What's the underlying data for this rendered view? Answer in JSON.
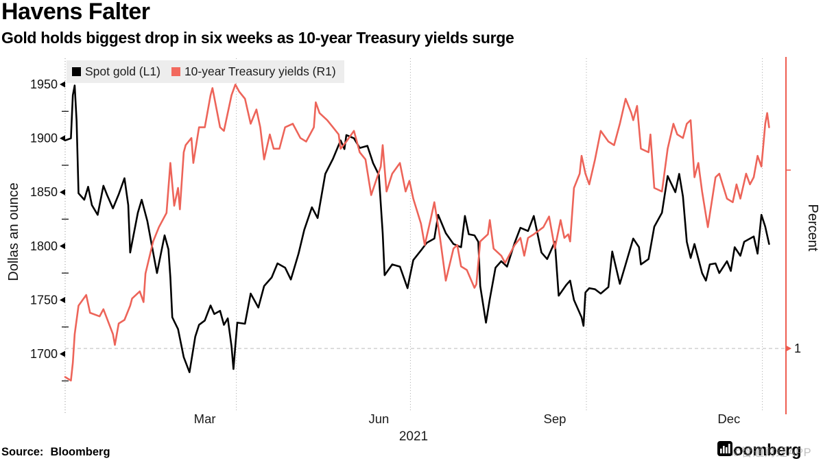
{
  "header": {
    "title": "Havens Falter",
    "subtitle": "Gold holds biggest drop in six weeks as 10-year Treasury yields surge"
  },
  "legend": [
    {
      "label": "Spot gold (L1)",
      "color": "#000000"
    },
    {
      "label": "10-year Treasury yields (R1)",
      "color": "#f2695e"
    }
  ],
  "footer": {
    "source_label": "Source:",
    "source_value": "Bloomberg",
    "brand": "Bloomberg",
    "watermark": "©智通财经APP"
  },
  "colors": {
    "gold_line": "#000000",
    "yield_line": "#ed6459",
    "right_axis": "#ee5d50",
    "gridline": "#a8a8a8",
    "legend_bg": "#ededed"
  },
  "chart_data": {
    "type": "line",
    "title": "Havens Falter",
    "x_axis": {
      "label": "2021",
      "tick_labels": [
        "Mar",
        "Jun",
        "Sep",
        "Dec"
      ],
      "tick_label_days": [
        74,
        165,
        257,
        348
      ],
      "gridline_days": [
        90.5,
        181.5,
        273.5,
        365.5
      ],
      "domain_days": [
        1,
        370
      ],
      "grid": "dotted-vertical"
    },
    "left_axis": {
      "label": "Dollas an ounce",
      "ticks": [
        1950,
        1900,
        1850,
        1800,
        1750,
        1700
      ],
      "minor_ticks": [
        1925,
        1875,
        1825,
        1775,
        1725,
        1675
      ],
      "range": [
        1646,
        1974
      ]
    },
    "right_axis": {
      "label": "Percent",
      "ticks": [
        1
      ],
      "minor_ticks": [
        1.5
      ],
      "range": [
        0.82,
        1.81
      ]
    },
    "series": [
      {
        "name": "Spot gold (L1)",
        "axis": "left",
        "color": "#000000",
        "points": [
          [
            1,
            1898
          ],
          [
            4,
            1900
          ],
          [
            5,
            1940
          ],
          [
            6,
            1949
          ],
          [
            7,
            1916
          ],
          [
            8,
            1849
          ],
          [
            11,
            1843
          ],
          [
            13,
            1855
          ],
          [
            15,
            1838
          ],
          [
            18,
            1829
          ],
          [
            21,
            1856
          ],
          [
            23,
            1847
          ],
          [
            26,
            1835
          ],
          [
            29,
            1848
          ],
          [
            32,
            1863
          ],
          [
            34,
            1838
          ],
          [
            35,
            1794
          ],
          [
            39,
            1831
          ],
          [
            41,
            1843
          ],
          [
            44,
            1823
          ],
          [
            47,
            1794
          ],
          [
            49,
            1775
          ],
          [
            53,
            1810
          ],
          [
            55,
            1797
          ],
          [
            56,
            1771
          ],
          [
            57,
            1734
          ],
          [
            60,
            1723
          ],
          [
            63,
            1697
          ],
          [
            66,
            1683
          ],
          [
            69,
            1716
          ],
          [
            71,
            1727
          ],
          [
            74,
            1731
          ],
          [
            77,
            1745
          ],
          [
            79,
            1737
          ],
          [
            82,
            1740
          ],
          [
            84,
            1727
          ],
          [
            86,
            1733
          ],
          [
            88,
            1707
          ],
          [
            89,
            1686
          ],
          [
            90,
            1708
          ],
          [
            91,
            1729
          ],
          [
            95,
            1728
          ],
          [
            98,
            1756
          ],
          [
            102,
            1743
          ],
          [
            105,
            1763
          ],
          [
            109,
            1771
          ],
          [
            112,
            1784
          ],
          [
            116,
            1780
          ],
          [
            119,
            1769
          ],
          [
            123,
            1793
          ],
          [
            126,
            1815
          ],
          [
            130,
            1836
          ],
          [
            133,
            1826
          ],
          [
            137,
            1867
          ],
          [
            141,
            1881
          ],
          [
            145,
            1898
          ],
          [
            147,
            1890
          ],
          [
            148,
            1903
          ],
          [
            152,
            1900
          ],
          [
            155,
            1891
          ],
          [
            159,
            1893
          ],
          [
            162,
            1877
          ],
          [
            165,
            1866
          ],
          [
            167,
            1812
          ],
          [
            168,
            1773
          ],
          [
            172,
            1783
          ],
          [
            176,
            1781
          ],
          [
            180,
            1761
          ],
          [
            181,
            1770
          ],
          [
            183,
            1787
          ],
          [
            187,
            1796
          ],
          [
            190,
            1803
          ],
          [
            194,
            1807
          ],
          [
            196,
            1829
          ],
          [
            200,
            1812
          ],
          [
            204,
            1802
          ],
          [
            208,
            1799
          ],
          [
            210,
            1828
          ],
          [
            212,
            1811
          ],
          [
            215,
            1810
          ],
          [
            217,
            1804
          ],
          [
            218,
            1763
          ],
          [
            221,
            1729
          ],
          [
            223,
            1751
          ],
          [
            226,
            1780
          ],
          [
            229,
            1786
          ],
          [
            232,
            1781
          ],
          [
            236,
            1803
          ],
          [
            239,
            1817
          ],
          [
            243,
            1814
          ],
          [
            246,
            1828
          ],
          [
            250,
            1794
          ],
          [
            253,
            1788
          ],
          [
            257,
            1804
          ],
          [
            259,
            1754
          ],
          [
            263,
            1764
          ],
          [
            265,
            1768
          ],
          [
            267,
            1750
          ],
          [
            271,
            1734
          ],
          [
            272,
            1726
          ],
          [
            273,
            1757
          ],
          [
            275,
            1761
          ],
          [
            278,
            1760
          ],
          [
            281,
            1756
          ],
          [
            285,
            1762
          ],
          [
            287,
            1795
          ],
          [
            291,
            1765
          ],
          [
            294,
            1783
          ],
          [
            298,
            1807
          ],
          [
            301,
            1799
          ],
          [
            302,
            1783
          ],
          [
            306,
            1788
          ],
          [
            309,
            1818
          ],
          [
            313,
            1831
          ],
          [
            316,
            1865
          ],
          [
            320,
            1850
          ],
          [
            322,
            1867
          ],
          [
            324,
            1846
          ],
          [
            326,
            1804
          ],
          [
            328,
            1789
          ],
          [
            330,
            1802
          ],
          [
            334,
            1775
          ],
          [
            336,
            1768
          ],
          [
            338,
            1783
          ],
          [
            341,
            1784
          ],
          [
            343,
            1775
          ],
          [
            347,
            1786
          ],
          [
            349,
            1777
          ],
          [
            351,
            1799
          ],
          [
            354,
            1791
          ],
          [
            356,
            1804
          ],
          [
            361,
            1809
          ],
          [
            363,
            1793
          ],
          [
            365,
            1829
          ],
          [
            367,
            1818
          ],
          [
            369,
            1802
          ]
        ]
      },
      {
        "name": "10-year Treasury yields (R1)",
        "axis": "right",
        "color": "#ed6459",
        "points": [
          [
            1,
            0.92
          ],
          [
            4,
            0.91
          ],
          [
            5,
            0.96
          ],
          [
            6,
            1.04
          ],
          [
            8,
            1.12
          ],
          [
            12,
            1.15
          ],
          [
            14,
            1.1
          ],
          [
            19,
            1.09
          ],
          [
            21,
            1.11
          ],
          [
            26,
            1.04
          ],
          [
            27,
            1.01
          ],
          [
            29,
            1.07
          ],
          [
            32,
            1.08
          ],
          [
            35,
            1.12
          ],
          [
            36,
            1.14
          ],
          [
            40,
            1.16
          ],
          [
            42,
            1.13
          ],
          [
            43,
            1.21
          ],
          [
            47,
            1.3
          ],
          [
            50,
            1.34
          ],
          [
            54,
            1.38
          ],
          [
            56,
            1.52
          ],
          [
            57,
            1.46
          ],
          [
            58,
            1.4
          ],
          [
            60,
            1.45
          ],
          [
            61,
            1.39
          ],
          [
            63,
            1.55
          ],
          [
            64,
            1.57
          ],
          [
            67,
            1.59
          ],
          [
            68,
            1.52
          ],
          [
            71,
            1.62
          ],
          [
            74,
            1.62
          ],
          [
            77,
            1.71
          ],
          [
            78,
            1.73
          ],
          [
            82,
            1.62
          ],
          [
            84,
            1.61
          ],
          [
            88,
            1.71
          ],
          [
            90,
            1.74
          ],
          [
            92,
            1.72
          ],
          [
            95,
            1.7
          ],
          [
            98,
            1.63
          ],
          [
            101,
            1.67
          ],
          [
            103,
            1.62
          ],
          [
            105,
            1.53
          ],
          [
            108,
            1.6
          ],
          [
            110,
            1.56
          ],
          [
            113,
            1.56
          ],
          [
            116,
            1.62
          ],
          [
            120,
            1.63
          ],
          [
            124,
            1.59
          ],
          [
            127,
            1.58
          ],
          [
            131,
            1.62
          ],
          [
            132,
            1.69
          ],
          [
            134,
            1.66
          ],
          [
            138,
            1.64
          ],
          [
            141,
            1.62
          ],
          [
            144,
            1.6
          ],
          [
            145,
            1.56
          ],
          [
            148,
            1.58
          ],
          [
            152,
            1.61
          ],
          [
            155,
            1.55
          ],
          [
            158,
            1.53
          ],
          [
            161,
            1.43
          ],
          [
            166,
            1.51
          ],
          [
            167,
            1.57
          ],
          [
            169,
            1.44
          ],
          [
            172,
            1.49
          ],
          [
            176,
            1.52
          ],
          [
            179,
            1.44
          ],
          [
            181,
            1.47
          ],
          [
            183,
            1.42
          ],
          [
            187,
            1.35
          ],
          [
            189,
            1.29
          ],
          [
            192,
            1.36
          ],
          [
            194,
            1.41
          ],
          [
            197,
            1.31
          ],
          [
            200,
            1.19
          ],
          [
            204,
            1.28
          ],
          [
            206,
            1.29
          ],
          [
            208,
            1.23
          ],
          [
            211,
            1.22
          ],
          [
            215,
            1.17
          ],
          [
            216,
            1.18
          ],
          [
            218,
            1.3
          ],
          [
            222,
            1.32
          ],
          [
            223,
            1.36
          ],
          [
            225,
            1.28
          ],
          [
            229,
            1.26
          ],
          [
            231,
            1.24
          ],
          [
            236,
            1.29
          ],
          [
            239,
            1.31
          ],
          [
            241,
            1.26
          ],
          [
            243,
            1.31
          ],
          [
            246,
            1.32
          ],
          [
            251,
            1.34
          ],
          [
            254,
            1.37
          ],
          [
            257,
            1.28
          ],
          [
            260,
            1.36
          ],
          [
            262,
            1.31
          ],
          [
            264,
            1.32
          ],
          [
            265,
            1.3
          ],
          [
            267,
            1.45
          ],
          [
            270,
            1.49
          ],
          [
            271,
            1.54
          ],
          [
            273,
            1.49
          ],
          [
            275,
            1.46
          ],
          [
            278,
            1.53
          ],
          [
            281,
            1.61
          ],
          [
            285,
            1.58
          ],
          [
            288,
            1.57
          ],
          [
            291,
            1.63
          ],
          [
            294,
            1.7
          ],
          [
            297,
            1.66
          ],
          [
            298,
            1.64
          ],
          [
            300,
            1.68
          ],
          [
            302,
            1.56
          ],
          [
            306,
            1.55
          ],
          [
            307,
            1.6
          ],
          [
            309,
            1.45
          ],
          [
            313,
            1.44
          ],
          [
            316,
            1.56
          ],
          [
            319,
            1.63
          ],
          [
            321,
            1.6
          ],
          [
            324,
            1.59
          ],
          [
            326,
            1.63
          ],
          [
            328,
            1.64
          ],
          [
            330,
            1.48
          ],
          [
            332,
            1.52
          ],
          [
            334,
            1.44
          ],
          [
            337,
            1.34
          ],
          [
            341,
            1.48
          ],
          [
            343,
            1.49
          ],
          [
            347,
            1.42
          ],
          [
            350,
            1.41
          ],
          [
            352,
            1.46
          ],
          [
            354,
            1.42
          ],
          [
            357,
            1.49
          ],
          [
            359,
            1.46
          ],
          [
            361,
            1.48
          ],
          [
            363,
            1.54
          ],
          [
            365,
            1.51
          ],
          [
            367,
            1.63
          ],
          [
            368,
            1.66
          ],
          [
            369,
            1.62
          ]
        ]
      }
    ],
    "legend_position": "top-left",
    "grid": "dotted vertical quarter lines; dashed horizontal line at right-axis value 1"
  }
}
